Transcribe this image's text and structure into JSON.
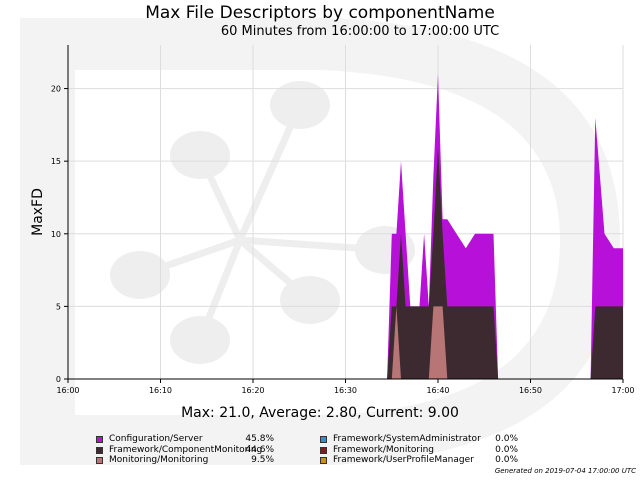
{
  "header": {
    "title": "Max File Descriptors by componentName",
    "subtitle": "60 Minutes from 16:00:00 to 17:00:00 UTC"
  },
  "stats_text": "Max: 21.0, Average: 2.80, Current: 9.00",
  "generated_text": "Generated on 2019-07-04 17:00:00 UTC",
  "legend": [
    {
      "label": "Configuration/Server",
      "pct": "45.8%",
      "color": "#b711d9"
    },
    {
      "label": "Framework/SystemAdministrator",
      "pct": "0.0%",
      "color": "#3a8fc0"
    },
    {
      "label": "Framework/ComponentMonitoring",
      "pct": "44.6%",
      "color": "#3d2a30"
    },
    {
      "label": "Framework/Monitoring",
      "pct": "0.0%",
      "color": "#7a1e1e"
    },
    {
      "label": "Monitoring/Monitoring",
      "pct": "9.5%",
      "color": "#b87575"
    },
    {
      "label": "Framework/UserProfileManager",
      "pct": "0.0%",
      "color": "#c8921a"
    }
  ],
  "chart_data": {
    "type": "area",
    "stacked": true,
    "xlabel": "",
    "ylabel": "MaxFD",
    "x_ticks": [
      "16:00",
      "16:10",
      "16:20",
      "16:30",
      "16:40",
      "16:50",
      "17:00"
    ],
    "y_ticks": [
      0,
      5,
      10,
      15,
      20
    ],
    "xlim_minutes": [
      0,
      60
    ],
    "ylim": [
      0,
      23
    ],
    "grid": true,
    "series": [
      {
        "name": "Monitoring/Monitoring",
        "color": "#b87575",
        "points": [
          [
            34.5,
            0
          ],
          [
            35,
            0
          ],
          [
            35.5,
            5
          ],
          [
            36,
            0
          ],
          [
            36.5,
            0
          ],
          [
            39,
            0
          ],
          [
            39.5,
            5
          ],
          [
            40,
            5
          ],
          [
            40.5,
            5
          ],
          [
            41,
            0
          ],
          [
            60,
            0
          ]
        ]
      },
      {
        "name": "Framework/ComponentMonitoring",
        "color": "#3d2a30",
        "points": [
          [
            34,
            0
          ],
          [
            34.5,
            0
          ],
          [
            35,
            5
          ],
          [
            35.5,
            5
          ],
          [
            36,
            10
          ],
          [
            36.5,
            5
          ],
          [
            37,
            5
          ],
          [
            38,
            5
          ],
          [
            38.5,
            5
          ],
          [
            39,
            5
          ],
          [
            39.5,
            10
          ],
          [
            40,
            16
          ],
          [
            40.5,
            10
          ],
          [
            41,
            5
          ],
          [
            42,
            5
          ],
          [
            43,
            5
          ],
          [
            44,
            5
          ],
          [
            45,
            5
          ],
          [
            46,
            5
          ],
          [
            46.5,
            0
          ],
          [
            56,
            0
          ],
          [
            56.5,
            0
          ],
          [
            57,
            5
          ],
          [
            58,
            5
          ],
          [
            59,
            5
          ],
          [
            60,
            5
          ]
        ]
      },
      {
        "name": "Configuration/Server",
        "color": "#b711d9",
        "points": [
          [
            34,
            0
          ],
          [
            34.5,
            0
          ],
          [
            35,
            10
          ],
          [
            35.5,
            10
          ],
          [
            36,
            15
          ],
          [
            36.5,
            10
          ],
          [
            37,
            5
          ],
          [
            38,
            5
          ],
          [
            38.5,
            10
          ],
          [
            39,
            5
          ],
          [
            39.5,
            14
          ],
          [
            40,
            21
          ],
          [
            40.5,
            11
          ],
          [
            41,
            11
          ],
          [
            42,
            10
          ],
          [
            43,
            9
          ],
          [
            44,
            10
          ],
          [
            45,
            10
          ],
          [
            46,
            10
          ],
          [
            46.5,
            0
          ],
          [
            56,
            0
          ],
          [
            56.5,
            0
          ],
          [
            57,
            18
          ],
          [
            58,
            10
          ],
          [
            59,
            9
          ],
          [
            60,
            9
          ]
        ]
      }
    ]
  }
}
